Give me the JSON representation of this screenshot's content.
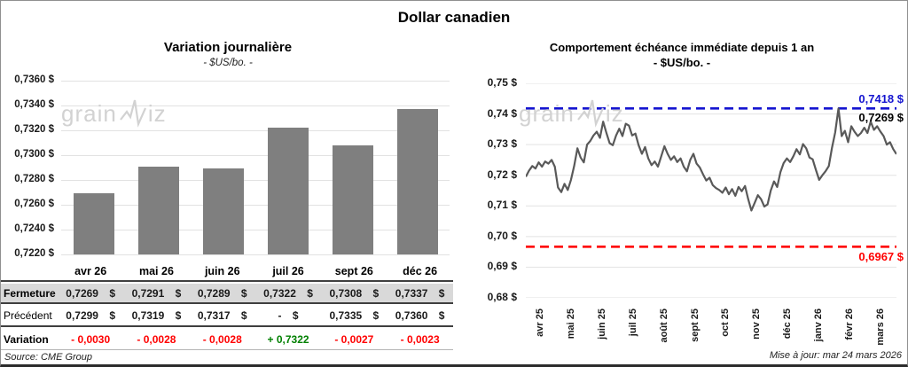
{
  "page": {
    "title": "Dollar canadien",
    "source": "Source: CME Group",
    "updated": "Mise à jour: mar 24 mars 2026",
    "watermark": "grainwiz"
  },
  "chart_data": [
    {
      "type": "bar",
      "title": "Variation journalière",
      "subtitle": "- $US/bo. -",
      "categories": [
        "avr 26",
        "mai 26",
        "juin 26",
        "juil 26",
        "sept 26",
        "déc 26"
      ],
      "values": [
        0.7269,
        0.7291,
        0.7289,
        0.7322,
        0.7308,
        0.7337
      ],
      "ylim": [
        0.722,
        0.736
      ],
      "yticks_labels": [
        "0,7360 $",
        "0,7340 $",
        "0,7320 $",
        "0,7300 $",
        "0,7280 $",
        "0,7260 $",
        "0,7240 $",
        "0,7220 $"
      ],
      "bar_color": "#7f7f7f",
      "grid": true,
      "table": {
        "rows": [
          {
            "label": "Fermeture",
            "bold": true,
            "bg": "#d9d9d9",
            "cells": [
              "0,7269 $",
              "0,7291 $",
              "0,7289 $",
              "0,7322 $",
              "0,7308 $",
              "0,7337 $"
            ]
          },
          {
            "label": "Précédent",
            "bold": false,
            "bg": "#ffffff",
            "cells": [
              "0,7299 $",
              "0,7319 $",
              "0,7317 $",
              "- $",
              "0,7335 $",
              "0,7360 $"
            ]
          },
          {
            "label": "Variation",
            "bold": true,
            "bg": "#ffffff",
            "cells": [
              {
                "text": "- 0,0030",
                "color": "#ff0000"
              },
              {
                "text": "- 0,0028",
                "color": "#ff0000"
              },
              {
                "text": "- 0,0028",
                "color": "#ff0000"
              },
              {
                "text": "+ 0,7322",
                "color": "#008000"
              },
              {
                "text": "- 0,0027",
                "color": "#ff0000"
              },
              {
                "text": "- 0,0023",
                "color": "#ff0000"
              }
            ]
          }
        ]
      }
    },
    {
      "type": "line",
      "title": "Comportement échéance immédiate depuis 1 an",
      "subtitle": "- $US/bo. -",
      "x_categories": [
        "avr 25",
        "mai 25",
        "juin 25",
        "juil 25",
        "août 25",
        "sept 25",
        "oct 25",
        "nov 25",
        "déc 25",
        "janv 26",
        "févr 26",
        "mars 26"
      ],
      "ylim": [
        0.68,
        0.75
      ],
      "yticks_labels": [
        "0,75 $",
        "0,74 $",
        "0,73 $",
        "0,72 $",
        "0,71 $",
        "0,70 $",
        "0,69 $",
        "0,68 $"
      ],
      "grid": true,
      "series": [
        {
          "name": "échéance immédiate",
          "color": "#595959",
          "values": [
            0.7195,
            0.7215,
            0.723,
            0.7222,
            0.7242,
            0.7228,
            0.7245,
            0.7238,
            0.725,
            0.7228,
            0.716,
            0.7145,
            0.7172,
            0.7152,
            0.7185,
            0.723,
            0.7288,
            0.7258,
            0.7242,
            0.73,
            0.7312,
            0.733,
            0.7342,
            0.7322,
            0.7375,
            0.7338,
            0.7305,
            0.7298,
            0.733,
            0.7352,
            0.7328,
            0.7368,
            0.7362,
            0.733,
            0.7336,
            0.7298,
            0.727,
            0.7292,
            0.7255,
            0.7233,
            0.7245,
            0.7228,
            0.7262,
            0.7295,
            0.727,
            0.725,
            0.7262,
            0.7243,
            0.7255,
            0.7228,
            0.7213,
            0.725,
            0.727,
            0.7238,
            0.7225,
            0.7203,
            0.7183,
            0.7192,
            0.7168,
            0.7158,
            0.7152,
            0.7143,
            0.716,
            0.7138,
            0.7155,
            0.7133,
            0.7162,
            0.7148,
            0.7165,
            0.7122,
            0.7085,
            0.711,
            0.7135,
            0.7122,
            0.7098,
            0.7105,
            0.715,
            0.718,
            0.7162,
            0.721,
            0.724,
            0.7255,
            0.7243,
            0.7262,
            0.7285,
            0.7268,
            0.7302,
            0.7288,
            0.7258,
            0.7252,
            0.7218,
            0.7185,
            0.72,
            0.7213,
            0.723,
            0.729,
            0.734,
            0.7418,
            0.7328,
            0.7345,
            0.7308,
            0.736,
            0.7342,
            0.7328,
            0.7338,
            0.7355,
            0.7338,
            0.7375,
            0.7348,
            0.736,
            0.7343,
            0.7328,
            0.73,
            0.7308,
            0.7285,
            0.7269
          ]
        }
      ],
      "annotations": {
        "high": {
          "value": 0.7418,
          "label": "0,7418 $",
          "color": "#1515d0",
          "style": "dashed"
        },
        "last": {
          "value": 0.7269,
          "label": "0,7269 $",
          "color": "#000000"
        },
        "low": {
          "value": 0.6967,
          "label": "0,6967 $",
          "color": "#ff0000",
          "style": "dashed"
        }
      }
    }
  ]
}
